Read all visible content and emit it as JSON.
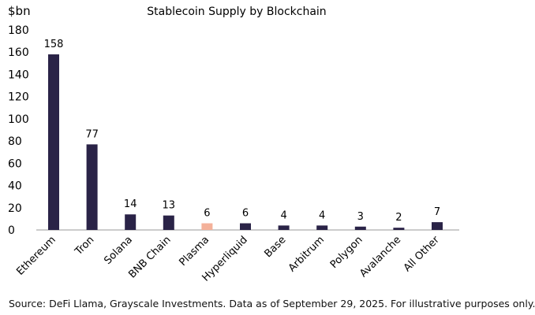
{
  "chart_data": {
    "type": "bar",
    "title": "Stablecoin Supply by Blockchain",
    "ylabel": "$bn",
    "xlabel": "",
    "ylim": [
      0,
      180
    ],
    "yticks": [
      0,
      20,
      40,
      60,
      80,
      100,
      120,
      140,
      160,
      180
    ],
    "grid": false,
    "categories": [
      "Ethereum",
      "Tron",
      "Solana",
      "BNB Chain",
      "Plasma",
      "Hyperliquid",
      "Base",
      "Arbitrum",
      "Polygon",
      "Avalanche",
      "All Other"
    ],
    "values": [
      158,
      77,
      14,
      13,
      6,
      6,
      4,
      4,
      3,
      2,
      7
    ],
    "data_labels": [
      "158",
      "77",
      "14",
      "13",
      "6",
      "6",
      "4",
      "4",
      "3",
      "2",
      "7"
    ],
    "bar_colors": [
      "#2a2347",
      "#2a2347",
      "#2a2347",
      "#2a2347",
      "#f4b19a",
      "#2a2347",
      "#2a2347",
      "#2a2347",
      "#2a2347",
      "#2a2347",
      "#2a2347"
    ]
  },
  "footer": {
    "source": "Source: DeFi Llama, Grayscale Investments. Data as of September 29, 2025. For illustrative purposes only."
  }
}
